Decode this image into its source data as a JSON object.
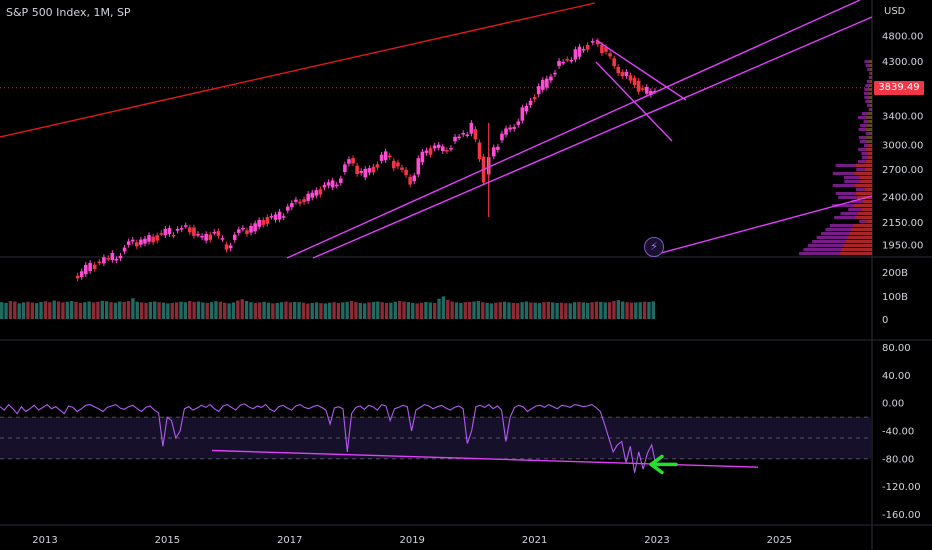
{
  "header": {
    "title": "S&P 500 Index, 1M, SP"
  },
  "price_axis": {
    "currency": "USD",
    "last_price": "3839.49"
  },
  "colors": {
    "up": "#26a69a",
    "down": "#f23645",
    "candle_up": "#ff4bd6",
    "candle_down": "#f23645",
    "trend_red": "#e01a1a",
    "trend_magenta": "#e040fb",
    "rsi_line": "#b05cf0",
    "arrow": "#22e02a"
  },
  "icons": {
    "flash": "lightning-bolt-icon",
    "arrow": "left-arrow-icon"
  },
  "chart_data": [
    {
      "type": "line",
      "name": "price",
      "x_ticks": [
        "2013",
        "2015",
        "2017",
        "2019",
        "2021",
        "2023",
        "2025"
      ],
      "y_ticks": [
        "4800.00",
        "4300.00",
        "3840.00",
        "3400.00",
        "3000.00",
        "2700.00",
        "2400.00",
        "2150.00",
        "1950.00"
      ],
      "x": [
        2013.5,
        2013.7,
        2014.0,
        2014.2,
        2014.4,
        2014.6,
        2014.8,
        2015.0,
        2015.2,
        2015.4,
        2015.6,
        2015.8,
        2016.0,
        2016.2,
        2016.4,
        2016.6,
        2016.8,
        2017.0,
        2017.2,
        2017.4,
        2017.6,
        2017.8,
        2018.0,
        2018.2,
        2018.4,
        2018.6,
        2018.8,
        2019.0,
        2019.2,
        2019.4,
        2019.6,
        2019.8,
        2020.0,
        2020.2,
        2020.3,
        2020.5,
        2020.7,
        2020.9,
        2021.1,
        2021.3,
        2021.5,
        2021.7,
        2021.9,
        2022.0,
        2022.2,
        2022.4,
        2022.6,
        2022.8,
        2023.0
      ],
      "values": [
        1700,
        1760,
        1820,
        1870,
        1950,
        1990,
        2010,
        2060,
        2080,
        2100,
        2000,
        2050,
        1950,
        2060,
        2100,
        2170,
        2200,
        2280,
        2380,
        2420,
        2500,
        2580,
        2800,
        2650,
        2720,
        2900,
        2700,
        2580,
        2900,
        2950,
        2980,
        3100,
        3250,
        2600,
        2900,
        3100,
        3300,
        3550,
        3800,
        4100,
        4300,
        4450,
        4600,
        4770,
        4400,
        4150,
        3980,
        3750,
        3839.49
      ]
    },
    {
      "type": "bar",
      "name": "volume",
      "y_ticks": [
        "200B",
        "100B",
        "0"
      ],
      "values": [
        55,
        52,
        60,
        58,
        50,
        54,
        57,
        53,
        51,
        56,
        59,
        55,
        62,
        58,
        54,
        57,
        60,
        56,
        52,
        55,
        58,
        54,
        57,
        61,
        59,
        55,
        53,
        58,
        56,
        60,
        72,
        57,
        54,
        52,
        56,
        58,
        55,
        53,
        50,
        52,
        54,
        57,
        55,
        60,
        56,
        58,
        54,
        52,
        55,
        59,
        57,
        53,
        50,
        54,
        62,
        68,
        60,
        55,
        52,
        54,
        57,
        53,
        50,
        52,
        55,
        58,
        54,
        56,
        55,
        53,
        49,
        52,
        54,
        51,
        50,
        53,
        55,
        52,
        54,
        57,
        60,
        55,
        52,
        50,
        54,
        56,
        58,
        55,
        52,
        53,
        57,
        60,
        58,
        55,
        52,
        50,
        53,
        56,
        54,
        52,
        70,
        80,
        65,
        58,
        54,
        52,
        55,
        56,
        58,
        60,
        55,
        52,
        50,
        53,
        55,
        57,
        54,
        52,
        51,
        55,
        58,
        54,
        53,
        52,
        55,
        56,
        54,
        52,
        53,
        51,
        50,
        55,
        56,
        54,
        52,
        55,
        57,
        56,
        54,
        55,
        60,
        64,
        58,
        55,
        53,
        54,
        55,
        57,
        56,
        58
      ],
      "ylim": [
        0,
        220
      ]
    },
    {
      "type": "line",
      "name": "oscillator",
      "y_ticks": [
        "80.00",
        "40.00",
        "0.00",
        "-40.00",
        "-80.00",
        "-120.00",
        "-160.00"
      ],
      "values": [
        -5,
        -10,
        -2,
        -8,
        -15,
        -5,
        -12,
        -8,
        -3,
        -10,
        -6,
        -2,
        -8,
        -5,
        -10,
        -15,
        -4,
        -6,
        -12,
        -8,
        -3,
        -2,
        -5,
        -8,
        -12,
        -6,
        -4,
        -2,
        -7,
        -9,
        -5,
        -3,
        -8,
        -12,
        -6,
        -4,
        -10,
        -14,
        -62,
        -20,
        -25,
        -50,
        -40,
        -8,
        -5,
        -10,
        -7,
        -3,
        -6,
        -2,
        -8,
        -12,
        -4,
        -2,
        -6,
        -10,
        -3,
        -1,
        -5,
        -8,
        -4,
        -6,
        -2,
        -9,
        -12,
        -5,
        -3,
        -7,
        -10,
        -4,
        -2,
        -6,
        -8,
        -5,
        -3,
        -6,
        -10,
        -30,
        -7,
        -5,
        -8,
        -70,
        -15,
        -6,
        -4,
        -9,
        -3,
        -5,
        -10,
        -2,
        -4,
        -25,
        -8,
        -6,
        -3,
        -5,
        -40,
        -10,
        -6,
        -2,
        -4,
        -8,
        -5,
        -3,
        -7,
        -10,
        -6,
        -4,
        -8,
        -58,
        -40,
        -5,
        -3,
        -6,
        -2,
        -8,
        -4,
        -10,
        -55,
        -20,
        -6,
        -3,
        -5,
        -12,
        -8,
        -4,
        -3,
        -6,
        -2,
        -5,
        -8,
        -3,
        -4,
        -6,
        -2,
        -3,
        -5,
        -4,
        -2,
        -6,
        -12,
        -30,
        -50,
        -70,
        -60,
        -55,
        -85,
        -62,
        -100,
        -70,
        -95,
        -72,
        -60,
        -90
      ],
      "ylim": [
        -175,
        85
      ]
    }
  ]
}
